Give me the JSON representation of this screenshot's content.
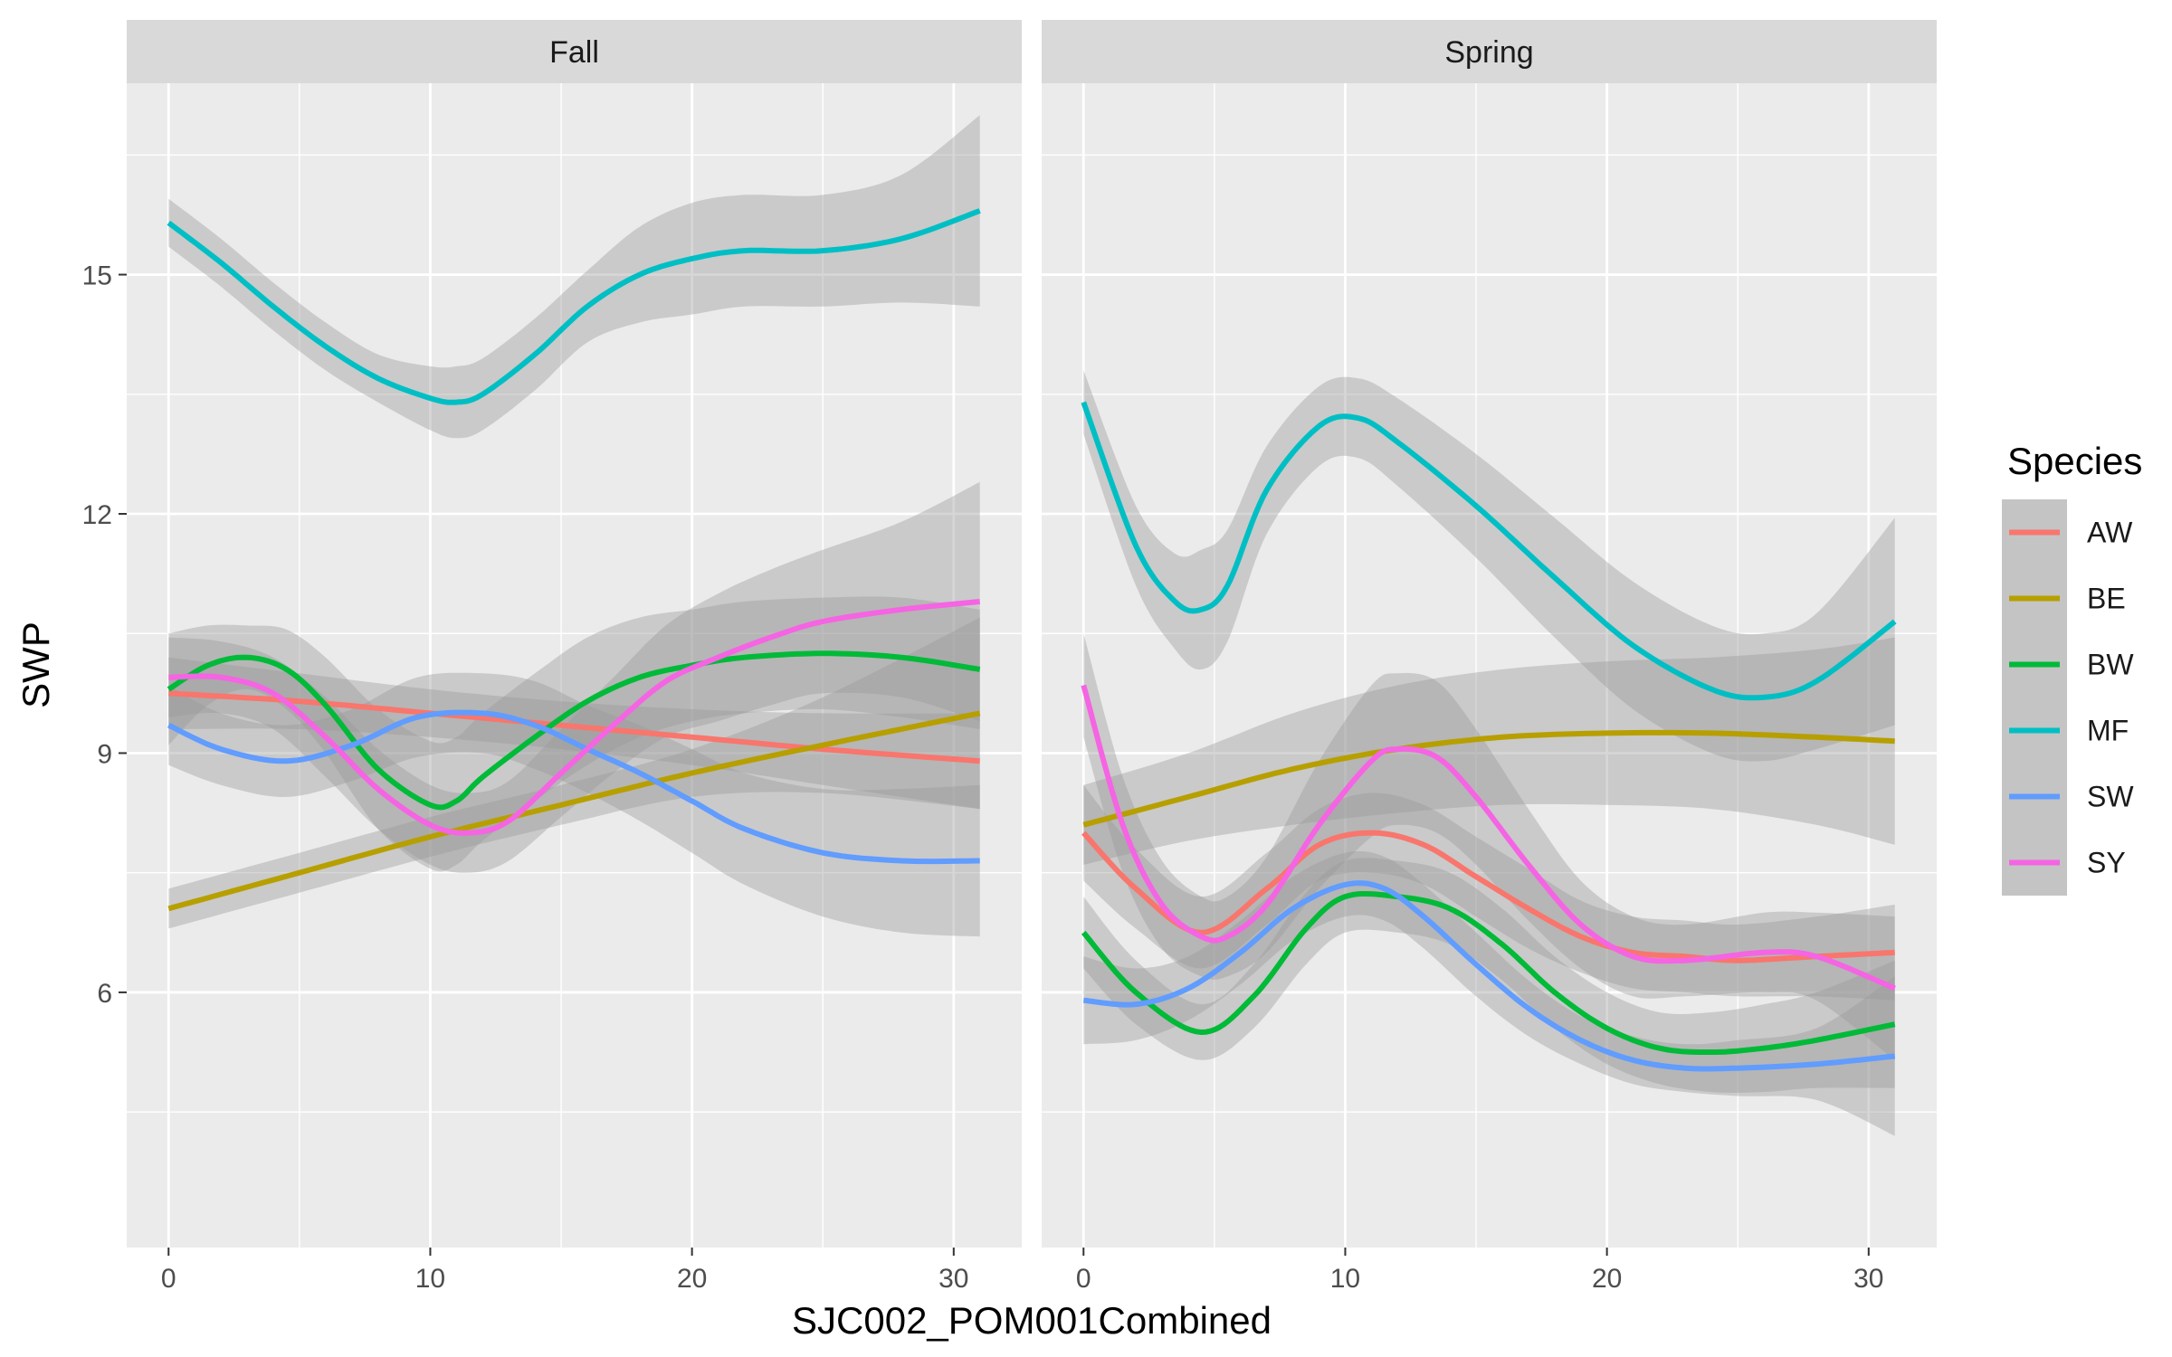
{
  "chart_data": {
    "type": "line",
    "facets": [
      "Fall",
      "Spring"
    ],
    "xlabel": "SJC002_POM001Combined",
    "ylabel": "SWP",
    "xlim": [
      -1.6,
      32.6
    ],
    "ylim": [
      2.8,
      17.4
    ],
    "x_ticks": [
      0,
      10,
      20,
      30
    ],
    "y_ticks": [
      6,
      9,
      12,
      15
    ],
    "grid": true,
    "legend": {
      "title": "Species",
      "position": "right",
      "entries": [
        {
          "label": "AW",
          "color": "#F8766D"
        },
        {
          "label": "BE",
          "color": "#B79F00"
        },
        {
          "label": "BW",
          "color": "#00BA38"
        },
        {
          "label": "MF",
          "color": "#00BFC4"
        },
        {
          "label": "SW",
          "color": "#619CFF"
        },
        {
          "label": "SY",
          "color": "#F564E3"
        }
      ]
    },
    "panels": [
      {
        "facet": "Fall",
        "series": [
          {
            "name": "AW",
            "x": [
              0,
              5,
              10,
              15,
              20,
              25,
              31
            ],
            "y": [
              9.75,
              9.65,
              9.5,
              9.35,
              9.2,
              9.05,
              8.9
            ],
            "ci": [
              0.45,
              0.35,
              0.3,
              0.3,
              0.35,
              0.45,
              0.6
            ]
          },
          {
            "name": "BE",
            "x": [
              0,
              5,
              10,
              15,
              20,
              25,
              31
            ],
            "y": [
              7.05,
              7.5,
              7.95,
              8.35,
              8.75,
              9.1,
              9.5
            ],
            "ci": [
              0.25,
              0.25,
              0.25,
              0.25,
              0.3,
              0.6,
              1.2
            ]
          },
          {
            "name": "BW",
            "x": [
              0,
              1.5,
              3,
              4.5,
              6,
              8,
              10,
              11,
              12,
              14,
              16,
              18,
              20,
              22,
              25,
              28,
              31
            ],
            "y": [
              9.8,
              10.1,
              10.2,
              10.05,
              9.6,
              8.8,
              8.35,
              8.4,
              8.7,
              9.2,
              9.65,
              9.95,
              10.1,
              10.2,
              10.25,
              10.2,
              10.05
            ],
            "ci": [
              0.7,
              0.5,
              0.4,
              0.5,
              0.6,
              0.75,
              0.8,
              0.8,
              0.8,
              0.8,
              0.8,
              0.75,
              0.7,
              0.7,
              0.7,
              0.75,
              0.75
            ]
          },
          {
            "name": "MF",
            "x": [
              0,
              2,
              4,
              6,
              8,
              10,
              11,
              12,
              14,
              16,
              18,
              20,
              22,
              25,
              28,
              31
            ],
            "y": [
              15.65,
              15.15,
              14.6,
              14.1,
              13.7,
              13.45,
              13.4,
              13.5,
              14.0,
              14.6,
              15.0,
              15.2,
              15.3,
              15.3,
              15.45,
              15.8
            ],
            "ci": [
              0.3,
              0.3,
              0.3,
              0.3,
              0.3,
              0.4,
              0.45,
              0.45,
              0.45,
              0.45,
              0.6,
              0.7,
              0.7,
              0.7,
              0.8,
              1.2
            ]
          },
          {
            "name": "SW",
            "x": [
              0,
              2,
              4.5,
              7,
              9.5,
              12,
              14,
              16,
              18,
              20,
              22,
              25,
              28,
              31
            ],
            "y": [
              9.35,
              9.05,
              8.9,
              9.1,
              9.45,
              9.5,
              9.35,
              9.05,
              8.75,
              8.4,
              8.05,
              7.75,
              7.65,
              7.65
            ],
            "ci": [
              0.5,
              0.45,
              0.45,
              0.45,
              0.5,
              0.5,
              0.55,
              0.55,
              0.6,
              0.65,
              0.7,
              0.8,
              0.9,
              0.95
            ]
          },
          {
            "name": "SY",
            "x": [
              0,
              2,
              4,
              6,
              8,
              10,
              11.5,
              13,
              15,
              17,
              19,
              21,
              23,
              25,
              28,
              31
            ],
            "y": [
              9.95,
              9.95,
              9.75,
              9.2,
              8.55,
              8.1,
              8.0,
              8.15,
              8.75,
              9.35,
              9.9,
              10.2,
              10.45,
              10.65,
              10.8,
              10.9
            ],
            "ci": [
              0.5,
              0.45,
              0.45,
              0.5,
              0.5,
              0.5,
              0.5,
              0.5,
              0.55,
              0.6,
              0.7,
              0.8,
              0.85,
              0.9,
              1.1,
              1.5
            ]
          }
        ]
      },
      {
        "facet": "Spring",
        "series": [
          {
            "name": "AW",
            "x": [
              0,
              2,
              4.5,
              7,
              9,
              11,
              13,
              15,
              17,
              19,
              21,
              23,
              25,
              28,
              31
            ],
            "y": [
              8.0,
              7.3,
              6.75,
              7.3,
              7.85,
              8.0,
              7.85,
              7.45,
              7.05,
              6.7,
              6.5,
              6.45,
              6.4,
              6.45,
              6.5
            ],
            "ci": [
              0.6,
              0.5,
              0.45,
              0.45,
              0.45,
              0.5,
              0.5,
              0.5,
              0.5,
              0.45,
              0.45,
              0.45,
              0.45,
              0.5,
              0.6
            ]
          },
          {
            "name": "BE",
            "x": [
              0,
              4,
              8,
              12,
              16,
              20,
              24,
              28,
              31
            ],
            "y": [
              8.1,
              8.45,
              8.8,
              9.05,
              9.2,
              9.25,
              9.25,
              9.2,
              9.15
            ],
            "ci": [
              0.5,
              0.55,
              0.7,
              0.8,
              0.85,
              0.9,
              0.95,
              1.1,
              1.3
            ]
          },
          {
            "name": "BW",
            "x": [
              0,
              2,
              4.5,
              6.5,
              8.5,
              10,
              12,
              14,
              16,
              18,
              20,
              22,
              24,
              26,
              28,
              31
            ],
            "y": [
              6.75,
              6.0,
              5.5,
              5.95,
              6.8,
              7.2,
              7.2,
              7.05,
              6.6,
              6.0,
              5.55,
              5.3,
              5.25,
              5.3,
              5.4,
              5.6
            ],
            "ci": [
              0.45,
              0.4,
              0.35,
              0.4,
              0.45,
              0.45,
              0.45,
              0.45,
              0.45,
              0.45,
              0.45,
              0.45,
              0.5,
              0.55,
              0.6,
              0.8
            ]
          },
          {
            "name": "MF",
            "x": [
              0,
              2,
              3.5,
              4.5,
              5.5,
              7,
              9,
              10.5,
              12,
              15,
              18,
              21,
              24,
              26,
              28,
              31
            ],
            "y": [
              13.4,
              11.6,
              10.9,
              10.8,
              11.1,
              12.3,
              13.1,
              13.2,
              12.9,
              12.1,
              11.2,
              10.35,
              9.8,
              9.7,
              9.9,
              10.65
            ],
            "ci": [
              0.4,
              0.5,
              0.6,
              0.75,
              0.7,
              0.55,
              0.5,
              0.5,
              0.55,
              0.65,
              0.75,
              0.8,
              0.8,
              0.8,
              0.85,
              1.3
            ]
          },
          {
            "name": "SW",
            "x": [
              0,
              2,
              4,
              6,
              8,
              10,
              11.5,
              13,
              15,
              17,
              19,
              21,
              23,
              25,
              28,
              31
            ],
            "y": [
              5.9,
              5.85,
              6.05,
              6.5,
              7.05,
              7.35,
              7.3,
              6.95,
              6.35,
              5.8,
              5.4,
              5.15,
              5.05,
              5.05,
              5.1,
              5.2
            ],
            "ci": [
              0.55,
              0.45,
              0.4,
              0.4,
              0.4,
              0.4,
              0.4,
              0.4,
              0.4,
              0.35,
              0.3,
              0.3,
              0.3,
              0.35,
              0.45,
              1.0
            ]
          },
          {
            "name": "SY",
            "x": [
              0,
              1.5,
              3,
              4.5,
              5.5,
              7,
              9,
              11,
              12,
              13.5,
              15,
              17,
              19,
              21,
              23,
              26,
              28,
              31
            ],
            "y": [
              9.85,
              8.1,
              7.1,
              6.7,
              6.7,
              7.1,
              8.1,
              8.9,
              9.05,
              8.95,
              8.45,
              7.6,
              6.85,
              6.45,
              6.4,
              6.5,
              6.45,
              6.05
            ],
            "ci": [
              0.65,
              0.6,
              0.55,
              0.5,
              0.5,
              0.6,
              0.8,
              0.95,
              0.95,
              0.95,
              0.85,
              0.7,
              0.55,
              0.5,
              0.45,
              0.5,
              0.55,
              0.9
            ]
          }
        ]
      }
    ]
  }
}
